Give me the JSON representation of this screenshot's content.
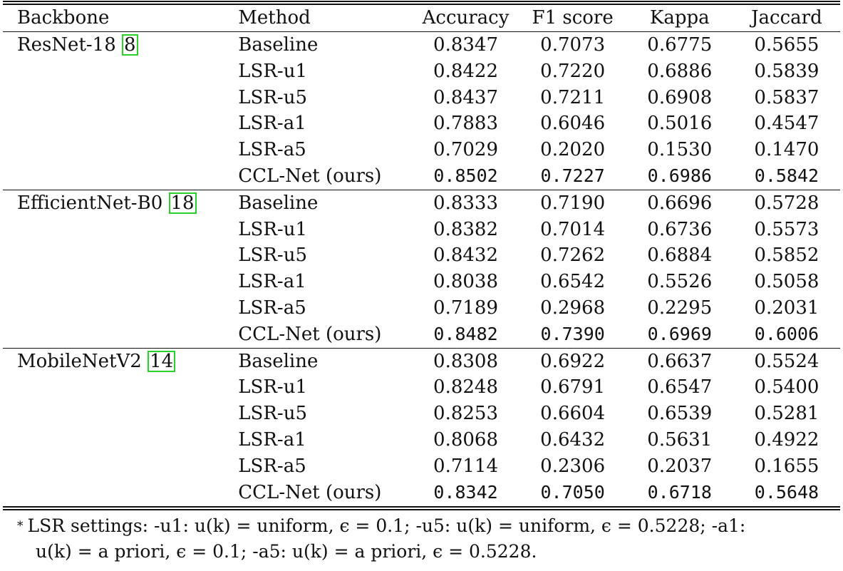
{
  "table": {
    "headers": {
      "backbone": "Backbone",
      "method": "Method",
      "accuracy": "Accuracy",
      "f1": "F1 score",
      "kappa": "Kappa",
      "jaccard": "Jaccard"
    },
    "groups": [
      {
        "backbone": "ResNet-18",
        "cite": "8",
        "rows": [
          {
            "method": "Baseline",
            "accuracy": "0.8347",
            "f1": "0.7073",
            "kappa": "0.6775",
            "jaccard": "0.5655"
          },
          {
            "method": "LSR-u1",
            "accuracy": "0.8422",
            "f1": "0.7220",
            "kappa": "0.6886",
            "jaccard": "0.5839"
          },
          {
            "method": "LSR-u5",
            "accuracy": "0.8437",
            "f1": "0.7211",
            "kappa": "0.6908",
            "jaccard": "0.5837"
          },
          {
            "method": "LSR-a1",
            "accuracy": "0.7883",
            "f1": "0.6046",
            "kappa": "0.5016",
            "jaccard": "0.4547"
          },
          {
            "method": "LSR-a5",
            "accuracy": "0.7029",
            "f1": "0.2020",
            "kappa": "0.1530",
            "jaccard": "0.1470"
          },
          {
            "method": "CCL-Net (ours)",
            "accuracy": "0.8502",
            "f1": "0.7227",
            "kappa": "0.6986",
            "jaccard": "0.5842"
          }
        ]
      },
      {
        "backbone": "EfficientNet-B0",
        "cite": "18",
        "rows": [
          {
            "method": "Baseline",
            "accuracy": "0.8333",
            "f1": "0.7190",
            "kappa": "0.6696",
            "jaccard": "0.5728"
          },
          {
            "method": "LSR-u1",
            "accuracy": "0.8382",
            "f1": "0.7014",
            "kappa": "0.6736",
            "jaccard": "0.5573"
          },
          {
            "method": "LSR-u5",
            "accuracy": "0.8432",
            "f1": "0.7262",
            "kappa": "0.6884",
            "jaccard": "0.5852"
          },
          {
            "method": "LSR-a1",
            "accuracy": "0.8038",
            "f1": "0.6542",
            "kappa": "0.5526",
            "jaccard": "0.5058"
          },
          {
            "method": "LSR-a5",
            "accuracy": "0.7189",
            "f1": "0.2968",
            "kappa": "0.2295",
            "jaccard": "0.2031"
          },
          {
            "method": "CCL-Net (ours)",
            "accuracy": "0.8482",
            "f1": "0.7390",
            "kappa": "0.6969",
            "jaccard": "0.6006"
          }
        ]
      },
      {
        "backbone": "MobileNetV2",
        "cite": "14",
        "rows": [
          {
            "method": "Baseline",
            "accuracy": "0.8308",
            "f1": "0.6922",
            "kappa": "0.6637",
            "jaccard": "0.5524"
          },
          {
            "method": "LSR-u1",
            "accuracy": "0.8248",
            "f1": "0.6791",
            "kappa": "0.6547",
            "jaccard": "0.5400"
          },
          {
            "method": "LSR-u5",
            "accuracy": "0.8253",
            "f1": "0.6604",
            "kappa": "0.6539",
            "jaccard": "0.5281"
          },
          {
            "method": "LSR-a1",
            "accuracy": "0.8068",
            "f1": "0.6432",
            "kappa": "0.5631",
            "jaccard": "0.4922"
          },
          {
            "method": "LSR-a5",
            "accuracy": "0.7114",
            "f1": "0.2306",
            "kappa": "0.2037",
            "jaccard": "0.1655"
          },
          {
            "method": "CCL-Net (ours)",
            "accuracy": "0.8342",
            "f1": "0.7050",
            "kappa": "0.6718",
            "jaccard": "0.5648"
          }
        ]
      }
    ]
  },
  "footnote": {
    "marker": "*",
    "line1": "LSR settings: -u1: u(k) = uniform, ϵ = 0.1; -u5: u(k) = uniform, ϵ = 0.5228; -a1:",
    "line2": "u(k) = a priori, ϵ = 0.1; -a5: u(k) = a priori, ϵ = 0.5228."
  }
}
